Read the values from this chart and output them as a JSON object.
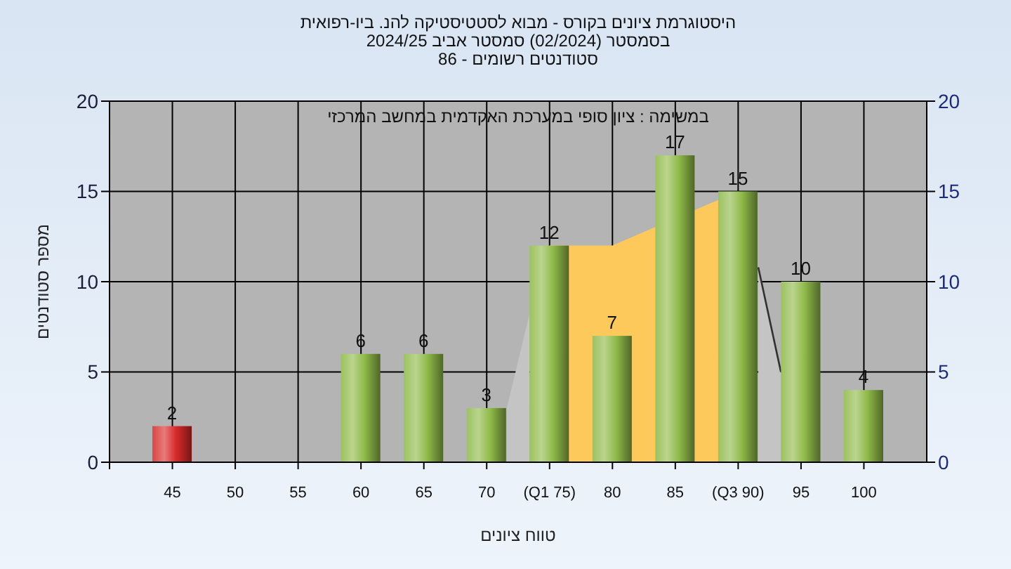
{
  "chart_data": {
    "type": "bar",
    "title": "היסטוגרמת ציונים בקורס - מבוא לסטטיסטיקה להנ. ביו-רפואית",
    "subtitle": "בסמסטר (02/2024) סמסטר אביב 2024/25\nסטודנטים רשומים - 86",
    "annotations": [
      "במשימה : ציון סופי במערכת האקדמית במחשב המרכזי"
    ],
    "xlabel": "טווח ציונים",
    "ylabel": "מספר סטודנטים",
    "x": [
      45,
      50,
      55,
      60,
      65,
      70,
      75,
      80,
      85,
      90,
      95,
      100
    ],
    "series": [
      {
        "type": "area",
        "color": "#c4c4c4",
        "x": [
          71.6,
          73.4
        ],
        "values": [
          3,
          8.2
        ]
      },
      {
        "type": "area",
        "color": "#fdc95a",
        "values": [
          null,
          null,
          null,
          null,
          null,
          null,
          12,
          12,
          null,
          15,
          null,
          null
        ]
      },
      {
        "type": "area",
        "color": "#c4c4c4",
        "line_style": "solid",
        "x": [
          91.6,
          93.4
        ],
        "values": [
          10.8,
          5
        ]
      },
      {
        "data_labels": true,
        "colors": [
          "#d82a2a",
          "#8fba48",
          "#8fba48",
          "#8fba48",
          "#8fba48",
          "#8fba48",
          "#8fba48",
          "#8fba48",
          "#8fba48",
          "#8fba48",
          "#8fba48",
          "#8fba48"
        ],
        "values": [
          2,
          null,
          null,
          6,
          6,
          3,
          12,
          7,
          17,
          15,
          10,
          4
        ]
      }
    ],
    "xlim": [
      40,
      105
    ],
    "xticks": [
      {
        "value": 40,
        "label": null
      },
      45,
      50,
      55,
      60,
      65,
      70,
      {
        "value": 75,
        "label": "(Q1 75)"
      },
      80,
      85,
      {
        "value": 90,
        "label": "(Q3 90)"
      },
      95,
      100
    ],
    "ylim": [
      0,
      20
    ],
    "yticks": [
      0,
      5,
      10,
      15,
      20
    ],
    "y2lim": [
      0,
      20
    ],
    "y2ticks": [
      0,
      5,
      10,
      15,
      20
    ],
    "grid": true
  }
}
